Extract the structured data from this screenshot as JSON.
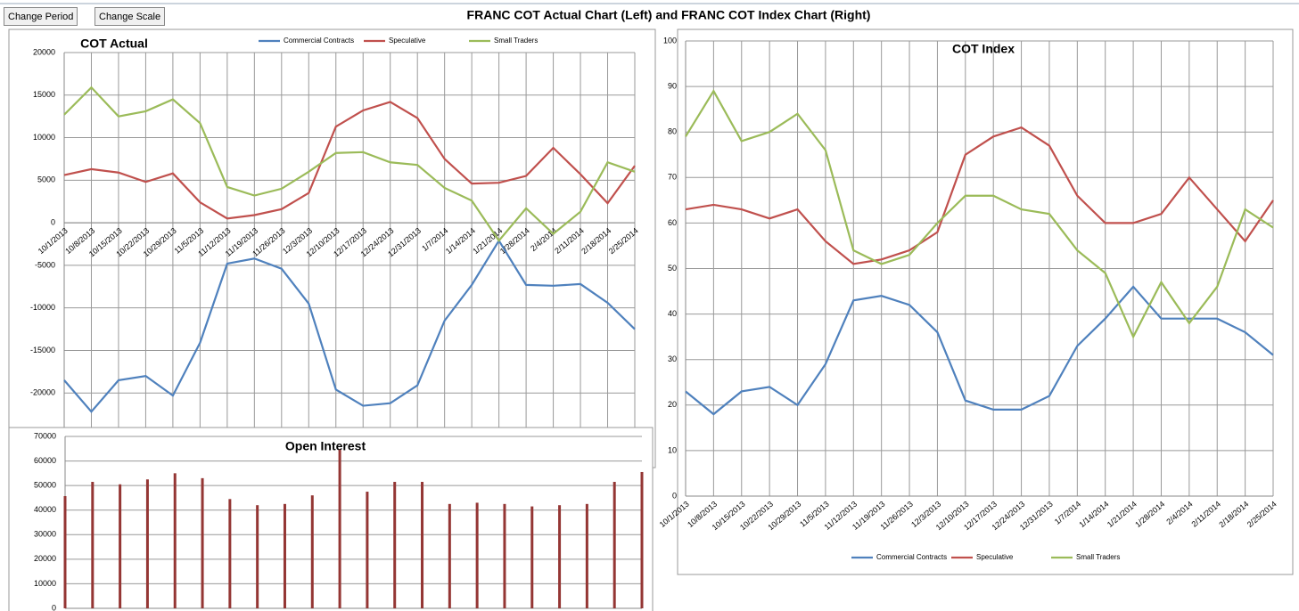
{
  "header": {
    "buttons": [
      "Change Period",
      "Change Scale"
    ],
    "title": "FRANC COT Actual Chart (Left) and FRANC COT Index Chart (Right)"
  },
  "chart_data": [
    {
      "type": "line",
      "title": "COT Actual",
      "categories": [
        "10/1/2013",
        "10/8/2013",
        "10/15/2013",
        "10/22/2013",
        "10/29/2013",
        "11/5/2013",
        "11/12/2013",
        "11/19/2013",
        "11/26/2013",
        "12/3/2013",
        "12/10/2013",
        "12/17/2013",
        "12/24/2013",
        "12/31/2013",
        "1/7/2014",
        "1/14/2014",
        "1/21/2014",
        "1/28/2014",
        "2/4/2014",
        "2/11/2014",
        "2/18/2014",
        "2/25/2014"
      ],
      "series": [
        {
          "name": "Commercial Contracts",
          "color": "#4f81bd",
          "values": [
            -18500,
            -22200,
            -18500,
            -18000,
            -20300,
            -14100,
            -4800,
            -4200,
            -5400,
            -9500,
            -19600,
            -21500,
            -21200,
            -19100,
            -11500,
            -7300,
            -2100,
            -7300,
            -7400,
            -7200,
            -9400,
            -12500
          ]
        },
        {
          "name": "Speculative",
          "color": "#c0504d",
          "values": [
            5600,
            6300,
            5900,
            4800,
            5800,
            2400,
            500,
            900,
            1600,
            3500,
            11300,
            13200,
            14200,
            12300,
            7500,
            4600,
            4700,
            5500,
            8800,
            5700,
            2300,
            6700
          ]
        },
        {
          "name": "Small Traders",
          "color": "#9bbb59",
          "values": [
            12700,
            15900,
            12500,
            13100,
            14500,
            11700,
            4200,
            3200,
            4000,
            6000,
            8200,
            8300,
            7100,
            6800,
            4100,
            2600,
            -2100,
            1700,
            -1300,
            1300,
            7100,
            6000
          ]
        }
      ],
      "ylim": [
        -25000,
        20000
      ],
      "yticks": [
        -20000,
        -15000,
        -10000,
        -5000,
        0,
        5000,
        10000,
        15000,
        20000
      ],
      "grid": true,
      "legend": "top"
    },
    {
      "type": "bar",
      "title": "Open Interest",
      "color": "#943634",
      "values": [
        45700,
        51500,
        50500,
        52500,
        55000,
        53000,
        44500,
        42000,
        42500,
        46000,
        64600,
        47500,
        51500,
        51500,
        42500,
        43000,
        42500,
        41500,
        42000,
        42500,
        51500,
        55500
      ],
      "ylim": [
        0,
        70000
      ],
      "yticks": [
        0,
        10000,
        20000,
        30000,
        40000,
        50000,
        60000,
        70000
      ],
      "grid": true
    },
    {
      "type": "line",
      "title": "COT Index",
      "categories": [
        "10/1/2013",
        "10/8/2013",
        "10/15/2013",
        "10/22/2013",
        "10/29/2013",
        "11/5/2013",
        "11/12/2013",
        "11/19/2013",
        "11/26/2013",
        "12/3/2013",
        "12/10/2013",
        "12/17/2013",
        "12/24/2013",
        "12/31/2013",
        "1/7/2014",
        "1/14/2014",
        "1/21/2014",
        "1/28/2014",
        "2/4/2014",
        "2/11/2014",
        "2/18/2014",
        "2/25/2014"
      ],
      "series": [
        {
          "name": "Commercial Contracts",
          "color": "#4f81bd",
          "values": [
            23,
            18,
            23,
            24,
            20,
            29,
            43,
            44,
            42,
            36,
            21,
            19,
            19,
            22,
            33,
            39,
            46,
            39,
            39,
            39,
            36,
            31
          ]
        },
        {
          "name": "Speculative",
          "color": "#c0504d",
          "values": [
            63,
            64,
            63,
            61,
            63,
            56,
            51,
            52,
            54,
            58,
            75,
            79,
            81,
            77,
            66,
            60,
            60,
            62,
            70,
            63,
            56,
            65
          ]
        },
        {
          "name": "Small Traders",
          "color": "#9bbb59",
          "values": [
            79,
            89,
            78,
            80,
            84,
            76,
            54,
            51,
            53,
            60,
            66,
            66,
            63,
            62,
            54,
            49,
            35,
            47,
            38,
            46,
            63,
            59
          ]
        }
      ],
      "ylim": [
        0,
        100
      ],
      "yticks": [
        0,
        10,
        20,
        30,
        40,
        50,
        60,
        70,
        80,
        90,
        100
      ],
      "grid": true,
      "legend": "bottom"
    }
  ]
}
